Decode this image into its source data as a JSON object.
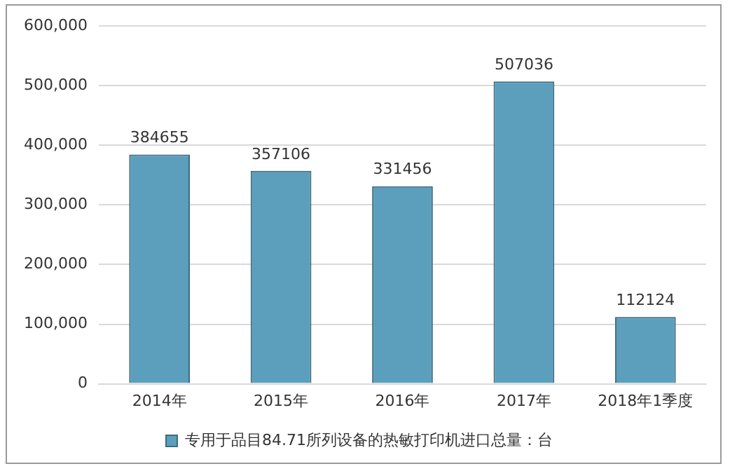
{
  "chart_data": {
    "type": "bar",
    "categories": [
      "2014年",
      "2015年",
      "2016年",
      "2017年",
      "2018年1季度"
    ],
    "series": [
      {
        "name": "专用于品目84.71所列设备的热敏打印机进口总量：台",
        "color": "#5b9fbd",
        "values": [
          384655,
          357106,
          331456,
          507036,
          112124
        ]
      }
    ],
    "ylim": [
      0,
      600000
    ],
    "yticks": [
      0,
      {
        "value": 100000,
        "label": "100,000"
      },
      {
        "value": 200000,
        "label": "200,000"
      },
      {
        "value": 300000,
        "label": "300,000"
      },
      {
        "value": 400000,
        "label": "400,000"
      },
      {
        "value": 500000,
        "label": "500,000"
      },
      {
        "value": 600000,
        "label": "600,000"
      }
    ],
    "grid": "y",
    "legend": "bottom",
    "data_labels": true
  }
}
